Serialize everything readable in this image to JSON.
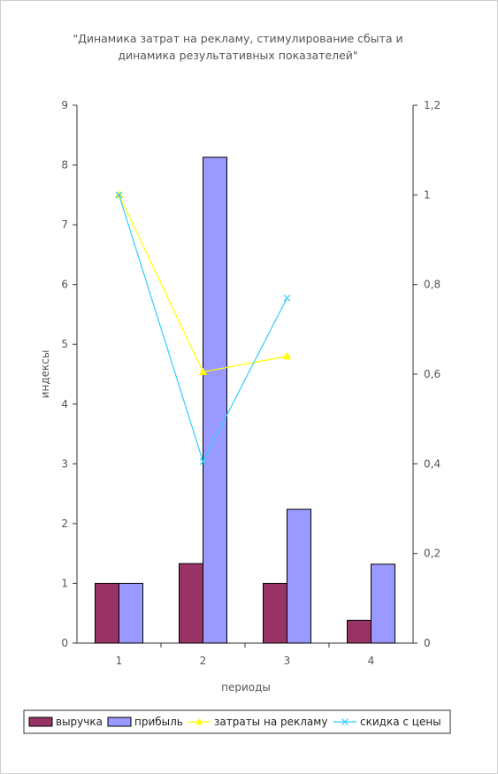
{
  "chart_data": {
    "type": "bar",
    "title_lines": [
      "\"Динамика затрат на рекламу, стимулирование сбыта и",
      "динамика результативных показателей\""
    ],
    "xlabel": "периоды",
    "ylabel": "индексы",
    "categories": [
      "1",
      "2",
      "3",
      "4"
    ],
    "ylim": [
      0,
      9
    ],
    "yticks": [
      "0",
      "1",
      "2",
      "3",
      "4",
      "5",
      "6",
      "7",
      "8",
      "9"
    ],
    "y2lim": [
      0,
      1.2
    ],
    "y2ticks": [
      "0",
      "0,2",
      "0,4",
      "0,6",
      "0,8",
      "1",
      "1,2"
    ],
    "bar_series": [
      {
        "name": "выручка",
        "color": "#993366",
        "values": [
          1.0,
          1.33,
          1.0,
          0.38
        ]
      },
      {
        "name": "прибыль",
        "color": "#9999ff",
        "values": [
          1.0,
          8.13,
          2.24,
          1.32
        ]
      }
    ],
    "line_series": [
      {
        "name": "затраты на рекламу",
        "color": "#ffff00",
        "marker": "triangle",
        "axis": "right",
        "values": [
          1.0,
          0.605,
          0.64,
          null
        ]
      },
      {
        "name": "скидка с цены",
        "color": "#33ccff",
        "marker": "x",
        "axis": "right",
        "values": [
          1.0,
          0.405,
          0.77,
          null
        ]
      }
    ],
    "legend_position": "bottom",
    "grid": false
  }
}
